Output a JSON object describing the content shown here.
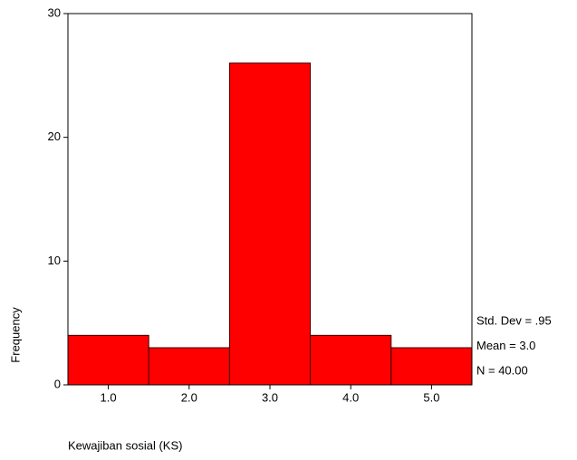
{
  "chart_data": {
    "type": "histogram",
    "x_label": "Kewajiban sosial (KS)",
    "y_label": "Frequency",
    "bins": [
      0.5,
      1.5,
      2.5,
      3.5,
      4.5,
      5.5
    ],
    "values": [
      4,
      3,
      26,
      4,
      3
    ],
    "color": "#ff0000",
    "xlim": [
      0.5,
      5.5
    ],
    "xticks": [
      {
        "value": 1,
        "label": "1.0"
      },
      {
        "value": 2,
        "label": "2.0"
      },
      {
        "value": 3,
        "label": "3.0"
      },
      {
        "value": 4,
        "label": "4.0"
      },
      {
        "value": 5,
        "label": "5.0"
      }
    ],
    "ylim": [
      0,
      30
    ],
    "yticks": [
      0,
      10,
      20,
      30
    ],
    "annotations": [
      "Std. Dev = .95",
      "Mean = 3.0",
      "N = 40.00"
    ]
  }
}
